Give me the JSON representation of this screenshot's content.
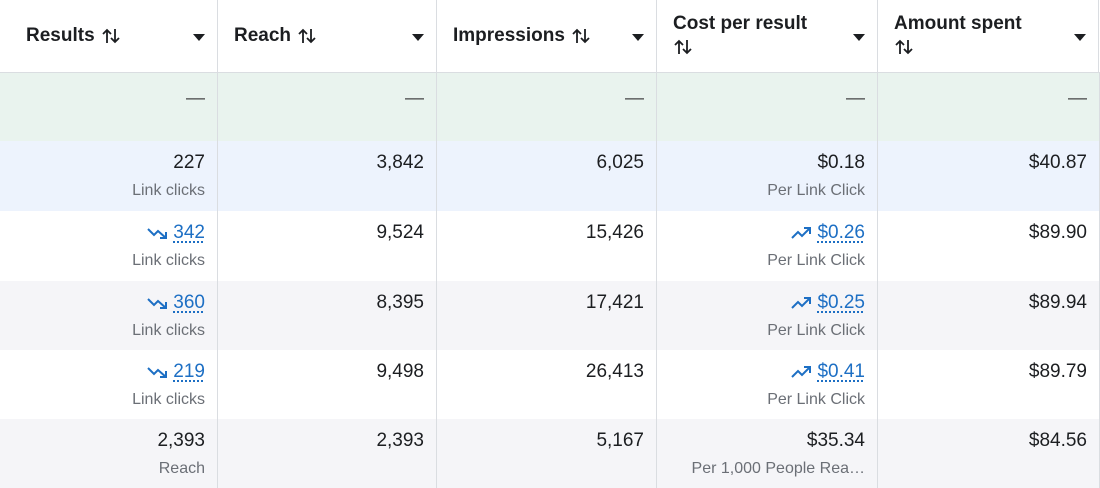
{
  "header": {
    "columns": [
      "Results",
      "Reach",
      "Impressions",
      "Cost per result",
      "Amount spent"
    ]
  },
  "table": {
    "rows": [
      {
        "style": "summary",
        "cells": [
          {
            "value": "—"
          },
          {
            "value": "—"
          },
          {
            "value": "—"
          },
          {
            "value": "—"
          },
          {
            "value": "—"
          }
        ]
      },
      {
        "style": "highlight",
        "cells": [
          {
            "value": "227",
            "sublabel": "Link clicks"
          },
          {
            "value": "3,842"
          },
          {
            "value": "6,025"
          },
          {
            "value": "$0.18",
            "sublabel": "Per Link Click"
          },
          {
            "value": "$40.87"
          }
        ]
      },
      {
        "style": "plain",
        "cells": [
          {
            "value": "342",
            "sublabel": "Link clicks",
            "trend": "down"
          },
          {
            "value": "9,524"
          },
          {
            "value": "15,426"
          },
          {
            "value": "$0.26",
            "sublabel": "Per Link Click",
            "trend": "up"
          },
          {
            "value": "$89.90"
          }
        ]
      },
      {
        "style": "shaded",
        "cells": [
          {
            "value": "360",
            "sublabel": "Link clicks",
            "trend": "down"
          },
          {
            "value": "8,395"
          },
          {
            "value": "17,421"
          },
          {
            "value": "$0.25",
            "sublabel": "Per Link Click",
            "trend": "up"
          },
          {
            "value": "$89.94"
          }
        ]
      },
      {
        "style": "plain",
        "cells": [
          {
            "value": "219",
            "sublabel": "Link clicks",
            "trend": "down"
          },
          {
            "value": "9,498"
          },
          {
            "value": "26,413"
          },
          {
            "value": "$0.41",
            "sublabel": "Per Link Click",
            "trend": "up"
          },
          {
            "value": "$89.79"
          }
        ]
      },
      {
        "style": "shaded",
        "cells": [
          {
            "value": "2,393",
            "sublabel": "Reach"
          },
          {
            "value": "2,393"
          },
          {
            "value": "5,167"
          },
          {
            "value": "$35.34",
            "sublabel": "Per 1,000 People Rea…"
          },
          {
            "value": "$84.56"
          }
        ]
      }
    ]
  }
}
